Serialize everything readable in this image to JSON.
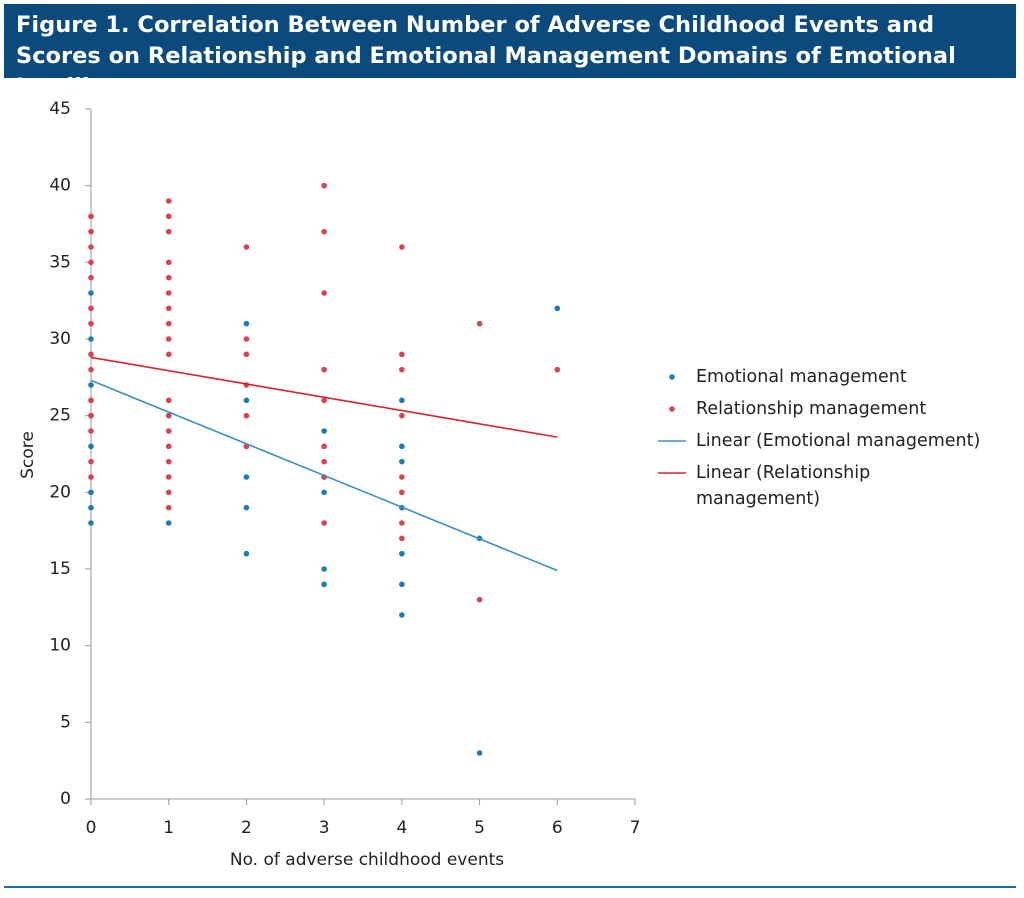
{
  "chart_data": {
    "type": "scatter",
    "title": "Figure 1. Correlation Between Number of Adverse Childhood Events and Scores on Relationship and Emotional Management Domains of Emotional Intelligence",
    "x_label": "No. of adverse childhood events",
    "y_label": "Score",
    "xlim": [
      0,
      7
    ],
    "xticks": [
      0,
      1,
      2,
      3,
      4,
      5,
      6,
      7
    ],
    "ylim": [
      0,
      45
    ],
    "yticks": [
      0,
      5,
      10,
      15,
      20,
      25,
      30,
      35,
      40,
      45
    ],
    "series": [
      {
        "name": "Emotional management",
        "type": "scatter",
        "color": "#1f7bb0",
        "x": [
          0,
          0,
          0,
          0,
          0,
          0,
          0,
          0,
          1,
          1,
          2,
          2,
          2,
          2,
          2,
          2,
          3,
          3,
          3,
          3,
          3,
          4,
          4,
          4,
          4,
          4,
          4,
          4,
          5,
          5,
          6
        ],
        "values": [
          33,
          30,
          27,
          25,
          23,
          20,
          19,
          18,
          25,
          18,
          31,
          26,
          23,
          21,
          19,
          16,
          24,
          21,
          20,
          15,
          14,
          26,
          23,
          22,
          19,
          16,
          14,
          12,
          17,
          3,
          32
        ]
      },
      {
        "name": "Relationship management",
        "type": "scatter",
        "color": "#d9434f",
        "x": [
          0,
          0,
          0,
          0,
          0,
          0,
          0,
          0,
          0,
          0,
          0,
          0,
          0,
          0,
          1,
          1,
          1,
          1,
          1,
          1,
          1,
          1,
          1,
          1,
          1,
          1,
          1,
          1,
          1,
          1,
          1,
          1,
          2,
          2,
          2,
          2,
          2,
          2,
          3,
          3,
          3,
          3,
          3,
          3,
          3,
          3,
          3,
          4,
          4,
          4,
          4,
          4,
          4,
          4,
          4,
          5,
          5,
          6
        ],
        "values": [
          38,
          37,
          36,
          35,
          34,
          32,
          31,
          29,
          28,
          26,
          25,
          24,
          22,
          21,
          39,
          38,
          37,
          35,
          34,
          33,
          32,
          31,
          30,
          29,
          26,
          25,
          24,
          23,
          22,
          21,
          20,
          19,
          36,
          30,
          29,
          27,
          25,
          23,
          40,
          37,
          33,
          28,
          26,
          23,
          22,
          21,
          18,
          36,
          29,
          28,
          25,
          21,
          20,
          18,
          17,
          31,
          13,
          28
        ]
      },
      {
        "name": "Linear (Emotional management)",
        "type": "line",
        "color": "#3a8fc6",
        "x": [
          0,
          6
        ],
        "values": [
          27.3,
          14.9
        ]
      },
      {
        "name": "Linear (Relationship management)",
        "type": "line",
        "color": "#d42331",
        "x": [
          0,
          6
        ],
        "values": [
          28.8,
          23.6
        ]
      }
    ]
  }
}
